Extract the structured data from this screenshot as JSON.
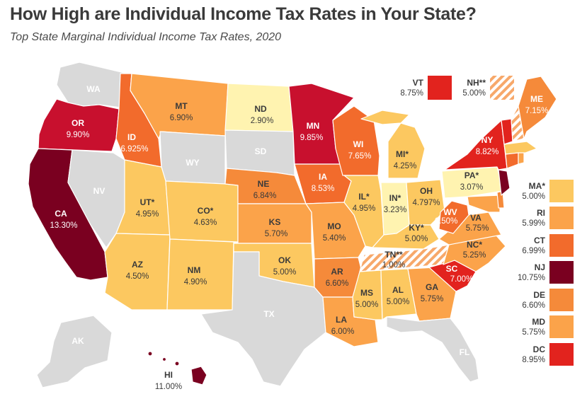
{
  "title": "How High are Individual Income Tax Rates in Your State?",
  "subtitle": "Top State Marginal Individual Income Tax Rates, 2020",
  "colors": {
    "no_tax": "#d9d9d9",
    "band_1": "#fff3b0",
    "band_2": "#fcc860",
    "band_3": "#fba34a",
    "band_4": "#f58a3a",
    "band_5": "#f26b2c",
    "band_6": "#e2231e",
    "band_7": "#c8102e",
    "band_8": "#7a0020",
    "hatch": "#f7a86a"
  },
  "states": [
    {
      "abbr": "WA",
      "rate": ""
    },
    {
      "abbr": "OR",
      "rate": "9.90%"
    },
    {
      "abbr": "CA",
      "rate": "13.30%"
    },
    {
      "abbr": "NV",
      "rate": ""
    },
    {
      "abbr": "ID",
      "rate": "6.925%"
    },
    {
      "abbr": "MT",
      "rate": "6.90%"
    },
    {
      "abbr": "WY",
      "rate": ""
    },
    {
      "abbr": "UT*",
      "rate": "4.95%"
    },
    {
      "abbr": "AZ",
      "rate": "4.50%"
    },
    {
      "abbr": "CO*",
      "rate": "4.63%"
    },
    {
      "abbr": "NM",
      "rate": "4.90%"
    },
    {
      "abbr": "ND",
      "rate": "2.90%"
    },
    {
      "abbr": "SD",
      "rate": ""
    },
    {
      "abbr": "NE",
      "rate": "6.84%"
    },
    {
      "abbr": "KS",
      "rate": "5.70%"
    },
    {
      "abbr": "OK",
      "rate": "5.00%"
    },
    {
      "abbr": "TX",
      "rate": ""
    },
    {
      "abbr": "MN",
      "rate": "9.85%"
    },
    {
      "abbr": "IA",
      "rate": "8.53%"
    },
    {
      "abbr": "MO",
      "rate": "5.40%"
    },
    {
      "abbr": "AR",
      "rate": "6.60%"
    },
    {
      "abbr": "LA",
      "rate": "6.00%"
    },
    {
      "abbr": "WI",
      "rate": "7.65%"
    },
    {
      "abbr": "IL*",
      "rate": "4.95%"
    },
    {
      "abbr": "MI*",
      "rate": "4.25%"
    },
    {
      "abbr": "IN*",
      "rate": "3.23%"
    },
    {
      "abbr": "OH",
      "rate": "4.797%"
    },
    {
      "abbr": "KY*",
      "rate": "5.00%"
    },
    {
      "abbr": "TN**",
      "rate": "1.00%"
    },
    {
      "abbr": "MS",
      "rate": "5.00%"
    },
    {
      "abbr": "AL",
      "rate": "5.00%"
    },
    {
      "abbr": "GA",
      "rate": "5.75%"
    },
    {
      "abbr": "FL",
      "rate": ""
    },
    {
      "abbr": "SC",
      "rate": "7.00%"
    },
    {
      "abbr": "NC*",
      "rate": "5.25%"
    },
    {
      "abbr": "VA",
      "rate": "5.75%"
    },
    {
      "abbr": "WV",
      "rate": "6.50%"
    },
    {
      "abbr": "PA*",
      "rate": "3.07%"
    },
    {
      "abbr": "NY",
      "rate": "8.82%"
    },
    {
      "abbr": "ME",
      "rate": "7.15%"
    },
    {
      "abbr": "AK",
      "rate": ""
    },
    {
      "abbr": "HI",
      "rate": "11.00%"
    }
  ],
  "top_legend": [
    {
      "abbr": "VT",
      "rate": "8.75%"
    },
    {
      "abbr": "NH**",
      "rate": "5.00%"
    }
  ],
  "side_legend": [
    {
      "abbr": "MA*",
      "rate": "5.00%"
    },
    {
      "abbr": "RI",
      "rate": "5.99%"
    },
    {
      "abbr": "CT",
      "rate": "6.99%"
    },
    {
      "abbr": "NJ",
      "rate": "10.75%"
    },
    {
      "abbr": "DE",
      "rate": "6.60%"
    },
    {
      "abbr": "MD",
      "rate": "5.75%"
    },
    {
      "abbr": "DC",
      "rate": "8.95%"
    }
  ]
}
